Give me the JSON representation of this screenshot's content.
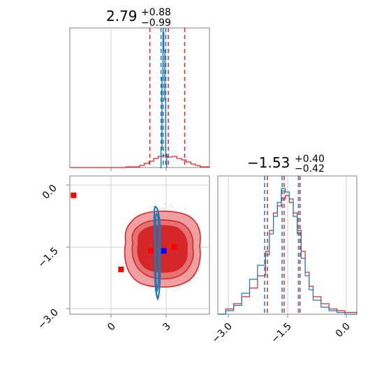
{
  "chart_data": [
    {
      "type": "histogram",
      "parameter": 1,
      "title": {
        "value": "2.79",
        "plus": "+0.88",
        "minus": "−0.99"
      },
      "xlim": [
        -2.5,
        5.0
      ],
      "grid": true,
      "red_quantile_lines": [
        1.8,
        2.79,
        3.67
      ],
      "blue_quantile_lines": [
        2.4,
        2.52,
        2.65
      ],
      "red_hist": {
        "x": [
          -2.5,
          -1.75,
          -1.0,
          -0.25,
          0.5,
          1.25,
          1.5,
          1.75,
          2.0,
          2.25,
          2.5,
          2.75,
          3.0,
          3.25,
          3.5,
          3.75,
          4.0,
          4.25,
          4.5,
          5.0
        ],
        "y": [
          0.0,
          0.0,
          0.0,
          0.0,
          0.2,
          0.6,
          1.2,
          1.8,
          2.6,
          3.2,
          3.4,
          3.0,
          3.2,
          2.6,
          2.2,
          1.6,
          1.0,
          0.6,
          0.2,
          0.0
        ]
      },
      "blue_hist": {
        "x": [
          2.35,
          2.4,
          2.45,
          2.5,
          2.55,
          2.6,
          2.65,
          2.7
        ],
        "y": [
          0.0,
          8.0,
          40.0,
          60.0,
          52.0,
          30.0,
          6.0,
          0.0
        ]
      }
    },
    {
      "type": "scatter+contour",
      "xlim": [
        -2.5,
        5.0
      ],
      "ylim": [
        -3.2,
        0.5
      ],
      "x_ticks": [
        "0",
        "3"
      ],
      "y_ticks": [
        "0.0",
        "−1.5",
        "−3.0"
      ],
      "grid": true,
      "red_contour_center": [
        2.79,
        -1.53
      ],
      "blue_contour_center": [
        2.52,
        -1.55
      ],
      "red_markers": [
        [
          -2.3,
          -0.25
        ],
        [
          0.25,
          -2.05
        ],
        [
          1.85,
          -1.6
        ],
        [
          3.1,
          -1.5
        ]
      ],
      "blue_marker": [
        2.55,
        -1.6
      ]
    },
    {
      "type": "histogram",
      "parameter": 2,
      "title": {
        "value": "−1.53",
        "plus": "+0.40",
        "minus": "−0.42"
      },
      "xlim": [
        -3.2,
        0.3
      ],
      "x_ticks": [
        "−3.0",
        "−1.5",
        "0.0"
      ],
      "grid": true,
      "red_quantile_lines": [
        -1.95,
        -1.53,
        -1.13
      ],
      "blue_quantile_lines": [
        -2.02,
        -1.58,
        -1.17
      ],
      "red_hist": {
        "x": [
          -3.2,
          -3.0,
          -2.8,
          -2.6,
          -2.4,
          -2.2,
          -2.0,
          -1.9,
          -1.8,
          -1.7,
          -1.6,
          -1.5,
          -1.4,
          -1.3,
          -1.2,
          -1.1,
          -1.0,
          -0.9,
          -0.8,
          -0.6,
          -0.4,
          -0.2,
          0.0,
          0.3
        ],
        "y": [
          0.0,
          0.3,
          0.6,
          1.0,
          1.5,
          2.2,
          3.6,
          4.8,
          5.8,
          6.2,
          6.6,
          6.8,
          6.4,
          5.8,
          4.8,
          3.6,
          2.4,
          1.6,
          1.0,
          0.6,
          0.3,
          0.2,
          0.1,
          0.0
        ]
      },
      "blue_hist": {
        "x": [
          -3.2,
          -3.0,
          -2.8,
          -2.6,
          -2.4,
          -2.2,
          -2.0,
          -1.9,
          -1.8,
          -1.7,
          -1.6,
          -1.5,
          -1.4,
          -1.3,
          -1.2,
          -1.1,
          -1.0,
          -0.9,
          -0.8,
          -0.6,
          -0.4,
          -0.2,
          0.0,
          0.3
        ],
        "y": [
          0.0,
          0.2,
          0.5,
          1.2,
          2.0,
          2.8,
          3.4,
          4.6,
          5.6,
          6.4,
          7.2,
          7.0,
          6.6,
          5.6,
          4.6,
          3.2,
          2.2,
          1.4,
          0.8,
          0.4,
          0.2,
          0.1,
          0.0,
          0.0
        ]
      }
    }
  ],
  "colors": {
    "red": "#d62728",
    "blue": "#1f77b4",
    "red_fill_light": "#f0a0a0",
    "red_fill_dark": "#d62728",
    "marker_red": "#ff0000",
    "marker_blue": "#0000ff",
    "grid": "#d0d0d0",
    "axes": "#808080"
  }
}
